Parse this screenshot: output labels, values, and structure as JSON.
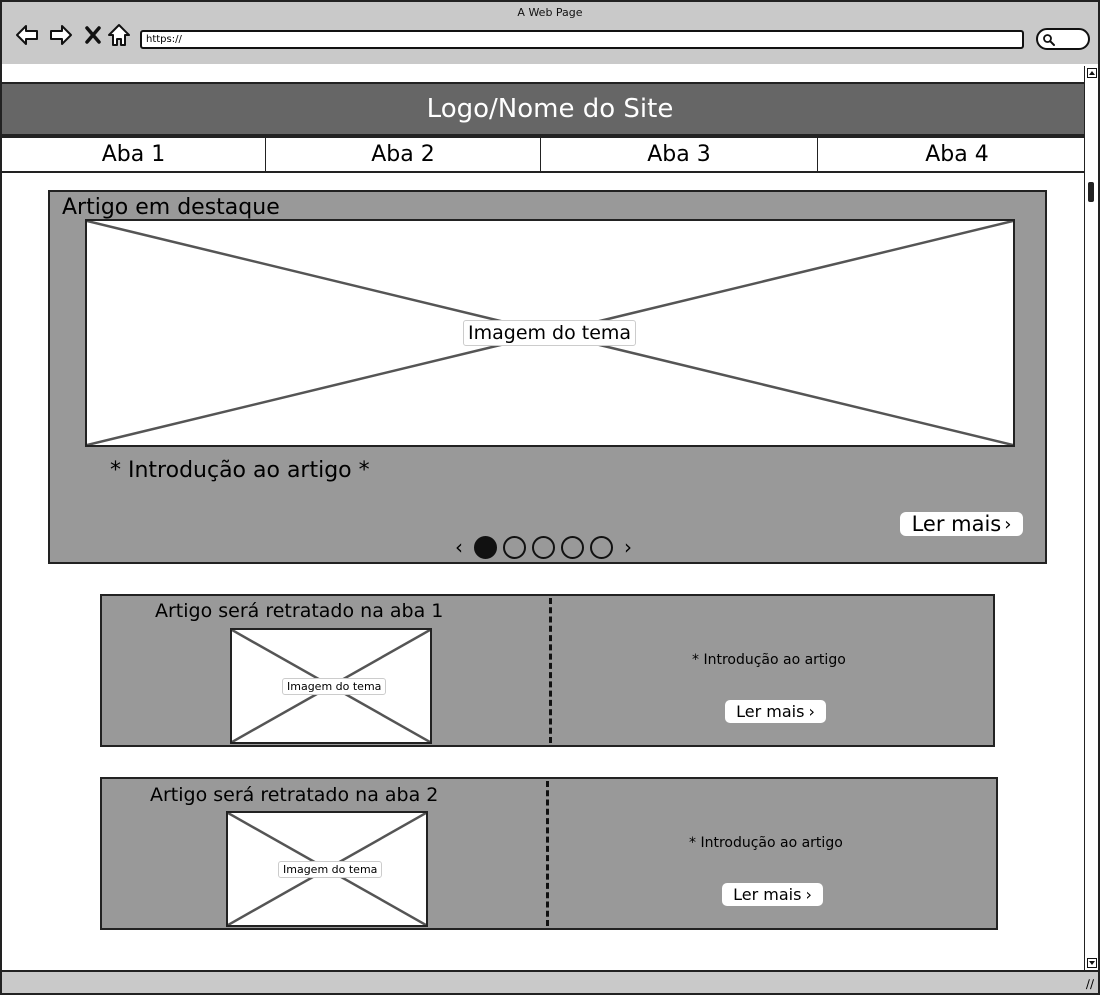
{
  "browser": {
    "window_title": "A Web Page",
    "url": "https://"
  },
  "site": {
    "title": "Logo/Nome do Site"
  },
  "tabs": [
    {
      "label": "Aba 1"
    },
    {
      "label": "Aba 2"
    },
    {
      "label": "Aba 3"
    },
    {
      "label": "Aba 4"
    }
  ],
  "featured": {
    "title": "Artigo em destaque",
    "image_label": "Imagem do tema",
    "intro": "* Introdução ao artigo *",
    "read_more": "Ler mais",
    "carousel_total": 5,
    "carousel_active": 1
  },
  "cards": [
    {
      "title": "Artigo será retratado na aba 1",
      "image_label": "Imagem do tema",
      "intro": "* Introdução ao artigo",
      "read_more": "Ler mais"
    },
    {
      "title": "Artigo será retratado na aba 2",
      "image_label": "Imagem do tema",
      "intro": "* Introdução ao artigo",
      "read_more": "Ler mais"
    }
  ],
  "colors": {
    "header_bg": "#666666",
    "panel_bg": "#999999",
    "chrome_bg": "#c9c9c9"
  }
}
